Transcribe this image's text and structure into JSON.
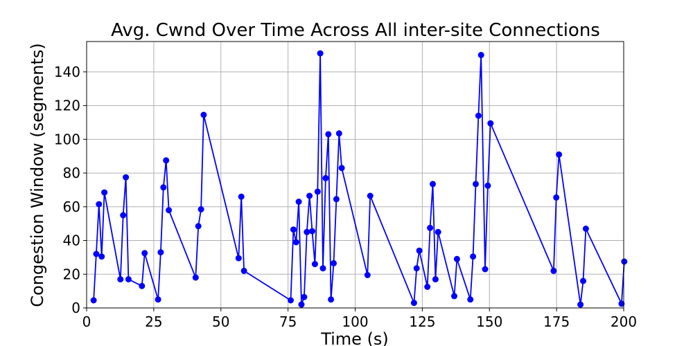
{
  "chart_data": {
    "type": "line",
    "title": "Avg. Cwnd Over Time Across All inter-site Connections",
    "xlabel": "Time (s)",
    "ylabel": "Congestion Window (segments)",
    "xlim": [
      0,
      200
    ],
    "ylim": [
      0,
      158
    ],
    "xticks": [
      0,
      25,
      50,
      75,
      100,
      125,
      150,
      175,
      200
    ],
    "yticks": [
      0,
      20,
      40,
      60,
      80,
      100,
      120,
      140
    ],
    "grid": true,
    "series_color": "#0000ff",
    "series": [
      {
        "x": [
          2.6,
          3.6,
          4.6,
          5.6,
          6.6,
          12.6,
          13.6,
          14.6,
          15.6,
          20.6,
          21.6,
          26.6,
          27.6,
          28.6,
          29.6,
          30.6,
          40.6,
          41.6,
          42.6,
          43.6,
          56.6,
          57.6,
          58.6,
          76.0,
          77.0,
          78.0,
          79.0,
          80.0,
          81.0,
          82.0,
          83.0,
          84.0,
          85.0,
          86.0,
          87.0,
          88.0,
          89.0,
          90.0,
          91.0,
          92.0,
          93.0,
          94.0,
          95.0,
          104.6,
          105.6,
          121.9,
          122.9,
          123.9,
          126.9,
          127.9,
          128.9,
          129.9,
          130.9,
          136.9,
          137.9,
          142.9,
          143.9,
          144.9,
          145.9,
          146.9,
          148.4,
          149.4,
          150.4,
          173.9,
          174.9,
          175.9,
          183.9,
          184.9,
          185.9,
          199.2,
          200.2
        ],
        "y": [
          4.5,
          32,
          61.5,
          30.5,
          68.5,
          17,
          55,
          77.5,
          17,
          13,
          32.5,
          5,
          33,
          71.5,
          87.5,
          58,
          18,
          48.5,
          58.5,
          114.5,
          29.5,
          66,
          22,
          4.5,
          46.5,
          39,
          63,
          2,
          6.5,
          45,
          66.5,
          45.5,
          26,
          69,
          151,
          23.5,
          77,
          103,
          5,
          26.5,
          64.5,
          103.5,
          83,
          19.5,
          66.5,
          3,
          23.5,
          34,
          12.5,
          47.5,
          73.5,
          17,
          45,
          7,
          29,
          5,
          30.5,
          73.5,
          114,
          150,
          23,
          72.5,
          109.5,
          22,
          65.5,
          91,
          2,
          16,
          47,
          2.5,
          27.5
        ]
      }
    ]
  }
}
